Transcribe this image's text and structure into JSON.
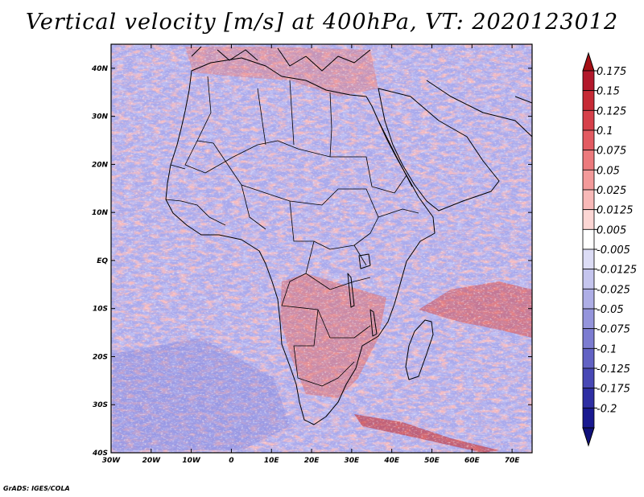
{
  "title": "Vertical velocity [m/s] at 400hPa, VT: 2020123012",
  "credit": "GrADS: IGES/COLA",
  "map": {
    "variable": "Vertical velocity",
    "units": "m/s",
    "level": "400hPa",
    "valid_time": "2020123012",
    "lon_range": [
      -30,
      75
    ],
    "lat_range": [
      -40,
      45
    ],
    "lon_ticks": [
      {
        "value": -30,
        "label": "30W"
      },
      {
        "value": -20,
        "label": "20W"
      },
      {
        "value": -10,
        "label": "10W"
      },
      {
        "value": 0,
        "label": "0"
      },
      {
        "value": 10,
        "label": "10E"
      },
      {
        "value": 20,
        "label": "20E"
      },
      {
        "value": 30,
        "label": "30E"
      },
      {
        "value": 40,
        "label": "40E"
      },
      {
        "value": 50,
        "label": "50E"
      },
      {
        "value": 60,
        "label": "60E"
      },
      {
        "value": 70,
        "label": "70E"
      }
    ],
    "lat_ticks": [
      {
        "value": 40,
        "label": "40N"
      },
      {
        "value": 30,
        "label": "30N"
      },
      {
        "value": 20,
        "label": "20N"
      },
      {
        "value": 10,
        "label": "10N"
      },
      {
        "value": 0,
        "label": "EQ"
      },
      {
        "value": -10,
        "label": "10S"
      },
      {
        "value": -20,
        "label": "20S"
      },
      {
        "value": -30,
        "label": "30S"
      },
      {
        "value": -40,
        "label": "40S"
      }
    ]
  },
  "colorbar": {
    "labels": [
      "0.175",
      "0.15",
      "0.125",
      "0.1",
      "0.075",
      "0.05",
      "0.025",
      "0.0125",
      "0.005",
      "-0.005",
      "-0.0125",
      "-0.025",
      "-0.05",
      "-0.075",
      "-0.1",
      "-0.125",
      "-0.175",
      "-0.2"
    ],
    "colors": [
      "#b2182b",
      "#c62a35",
      "#d6404a",
      "#e35b62",
      "#ec7a7d",
      "#f39a9a",
      "#f8b9b8",
      "#fcd6d4",
      "#ffffff",
      "#dcdcf5",
      "#c5c5ee",
      "#aeaee6",
      "#9595dc",
      "#7c7cd1",
      "#6262c4",
      "#4848b5",
      "#2e2ea3",
      "#191990"
    ],
    "top_color": "#a50f15",
    "bottom_color": "#10107a"
  }
}
